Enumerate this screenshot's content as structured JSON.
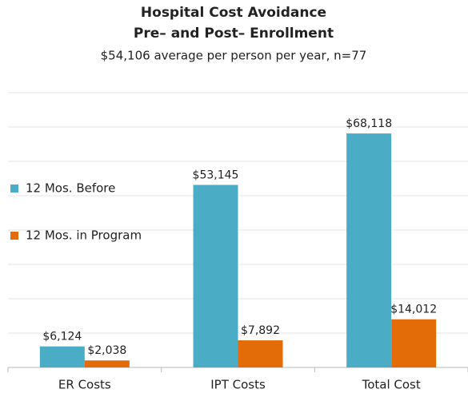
{
  "chart_data": {
    "type": "bar",
    "title": "Hospital Cost Avoidance",
    "title2": "Pre– and Post– Enrollment",
    "subtitle": "$54,106 average per person per year, n=77",
    "categories": [
      "ER Costs",
      "IPT Costs",
      "Total Cost"
    ],
    "series": [
      {
        "name": "12 Mos. Before",
        "color": "#4bacc6",
        "values": [
          6124,
          53145,
          68118
        ],
        "value_labels": [
          "$6,124",
          "$53,145",
          "$68,118"
        ]
      },
      {
        "name": "12 Mos. in Program",
        "color": "#e36c09",
        "values": [
          2038,
          7892,
          14012
        ],
        "value_labels": [
          "$2,038",
          "$7,892",
          "$14,012"
        ]
      }
    ],
    "ylim": [
      0,
      80000
    ],
    "yticks": [
      0,
      10000,
      20000,
      30000,
      40000,
      50000,
      60000,
      70000,
      80000
    ],
    "grid": true,
    "legend": "left"
  }
}
